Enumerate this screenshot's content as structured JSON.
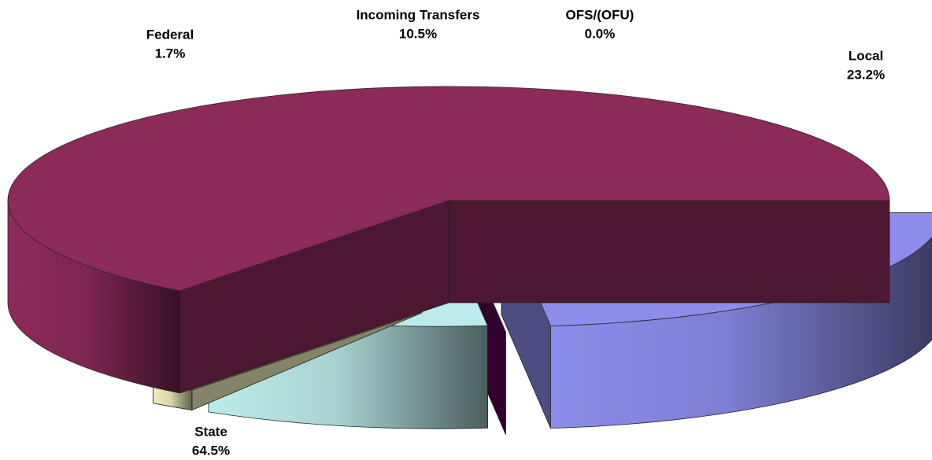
{
  "chart_data": {
    "type": "pie",
    "categories": [
      "Local",
      "OFS/(OFU)",
      "Incoming Transfers",
      "Federal",
      "State"
    ],
    "values": [
      23.2,
      0.0,
      10.5,
      1.7,
      64.5
    ],
    "value_labels": [
      "23.2%",
      "0.0%",
      "10.5%",
      "1.7%",
      "64.5%"
    ],
    "colors": [
      "#8c8ceb",
      "#5c0050",
      "#bdebeb",
      "#eeeebb",
      "#8c2a5a"
    ]
  }
}
